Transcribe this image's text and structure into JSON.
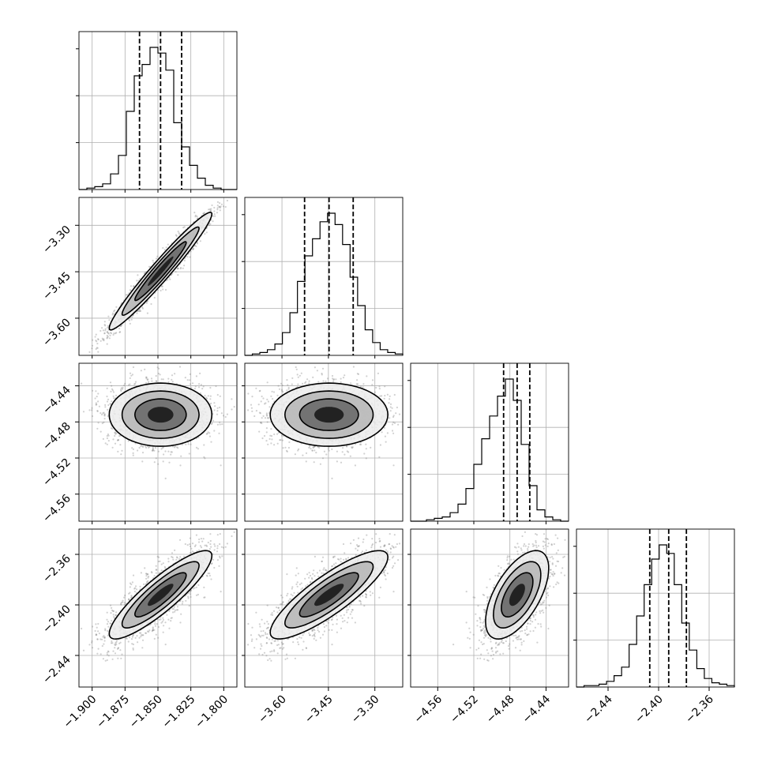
{
  "chart_data": {
    "type": "corner",
    "title": "",
    "parameters": [
      {
        "name": "",
        "ticks": [
          -1.9,
          -1.875,
          -1.85,
          -1.825,
          -1.8
        ],
        "tick_labels": [
          "−1.900",
          "−1.875",
          "−1.850",
          "−1.825",
          "−1.800"
        ],
        "range": [
          -1.91,
          -1.79
        ],
        "q16": -1.864,
        "median": -1.848,
        "q84": -1.832
      },
      {
        "name": "",
        "ticks": [
          -3.6,
          -3.45,
          -3.3
        ],
        "tick_labels": [
          "−3.60",
          "−3.45",
          "−3.30"
        ],
        "range": [
          -3.72,
          -3.21
        ],
        "q16": -3.527,
        "median": -3.448,
        "q84": -3.37
      },
      {
        "name": "",
        "ticks": [
          -4.56,
          -4.52,
          -4.48,
          -4.44
        ],
        "tick_labels": [
          "−4.56",
          "−4.52",
          "−4.48",
          "−4.44"
        ],
        "range": [
          -4.59,
          -4.415
        ],
        "q16": -4.487,
        "median": -4.472,
        "q84": -4.458
      },
      {
        "name": "",
        "ticks": [
          -2.44,
          -2.4,
          -2.36
        ],
        "tick_labels": [
          "−2.44",
          "−2.40",
          "−2.36"
        ],
        "range": [
          -2.465,
          -2.34
        ],
        "q16": -2.407,
        "median": -2.392,
        "q84": -2.378
      }
    ],
    "sigmas": [
      0.0195,
      0.095,
      0.0175,
      0.0175
    ],
    "correlations": [
      [
        1,
        0.97,
        0.0,
        0.88
      ],
      [
        0.97,
        1,
        0.0,
        0.85
      ],
      [
        0.0,
        0.0,
        1,
        0.6
      ],
      [
        0.88,
        0.85,
        0.6,
        1
      ]
    ],
    "histograms": [
      [
        0,
        1,
        2,
        4,
        11,
        24,
        55,
        80,
        88,
        100,
        96,
        84,
        47,
        30,
        17,
        8,
        3,
        1,
        0,
        0
      ],
      [
        0,
        1,
        2,
        4,
        8,
        16,
        30,
        52,
        70,
        82,
        94,
        100,
        92,
        78,
        55,
        35,
        18,
        9,
        4,
        2,
        1
      ],
      [
        0,
        0,
        1,
        2,
        3,
        6,
        12,
        23,
        40,
        58,
        74,
        88,
        100,
        85,
        54,
        25,
        8,
        3,
        1,
        0
      ],
      [
        0,
        1,
        1,
        2,
        4,
        8,
        14,
        30,
        50,
        72,
        90,
        100,
        94,
        72,
        45,
        26,
        13,
        6,
        3,
        2,
        1
      ]
    ],
    "grid": true
  }
}
